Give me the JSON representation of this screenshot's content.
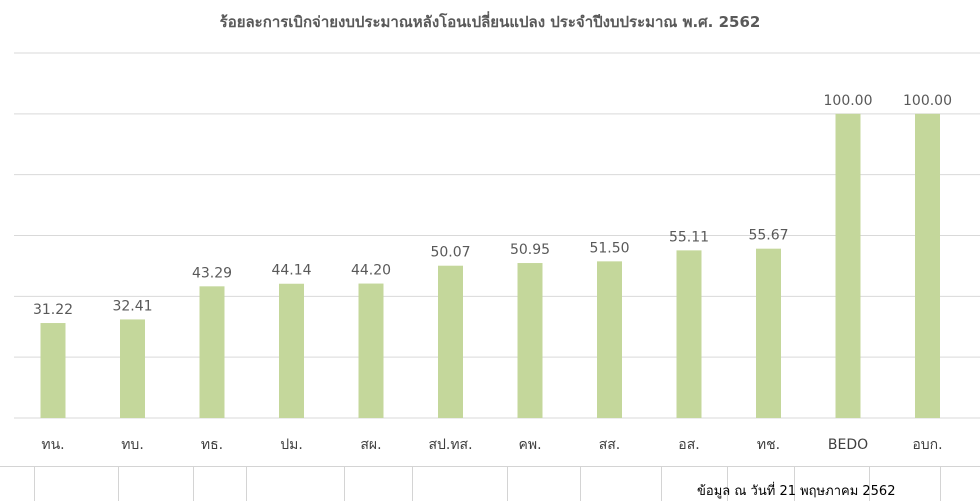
{
  "chart_data": {
    "type": "bar",
    "title": "ร้อยละการเบิกจ่ายงบประมาณหลังโอนเปลี่ยนแปลง  ประจำปีงบประมาณ พ.ศ. 2562",
    "categories": [
      "ทน.",
      "ทบ.",
      "ทธ.",
      "ปม.",
      "สผ.",
      "สป.ทส.",
      "คพ.",
      "สส.",
      "อส.",
      "ทช.",
      "BEDO",
      "อบก."
    ],
    "values": [
      31.22,
      32.41,
      43.29,
      44.14,
      44.2,
      50.07,
      50.95,
      51.5,
      55.11,
      55.67,
      100.0,
      100.0
    ],
    "data_labels": [
      "31.22",
      "32.41",
      "43.29",
      "44.14",
      "44.20",
      "50.07",
      "50.95",
      "51.50",
      "55.11",
      "55.67",
      "100.00",
      "100.00"
    ],
    "ylim": [
      0,
      120
    ],
    "grid": true,
    "bar_color": "#c4d79b",
    "xlabel": "",
    "ylabel": ""
  },
  "footer": {
    "note": "ข้อมูล ณ วันที่ 21 พฤษภาคม 2562"
  }
}
